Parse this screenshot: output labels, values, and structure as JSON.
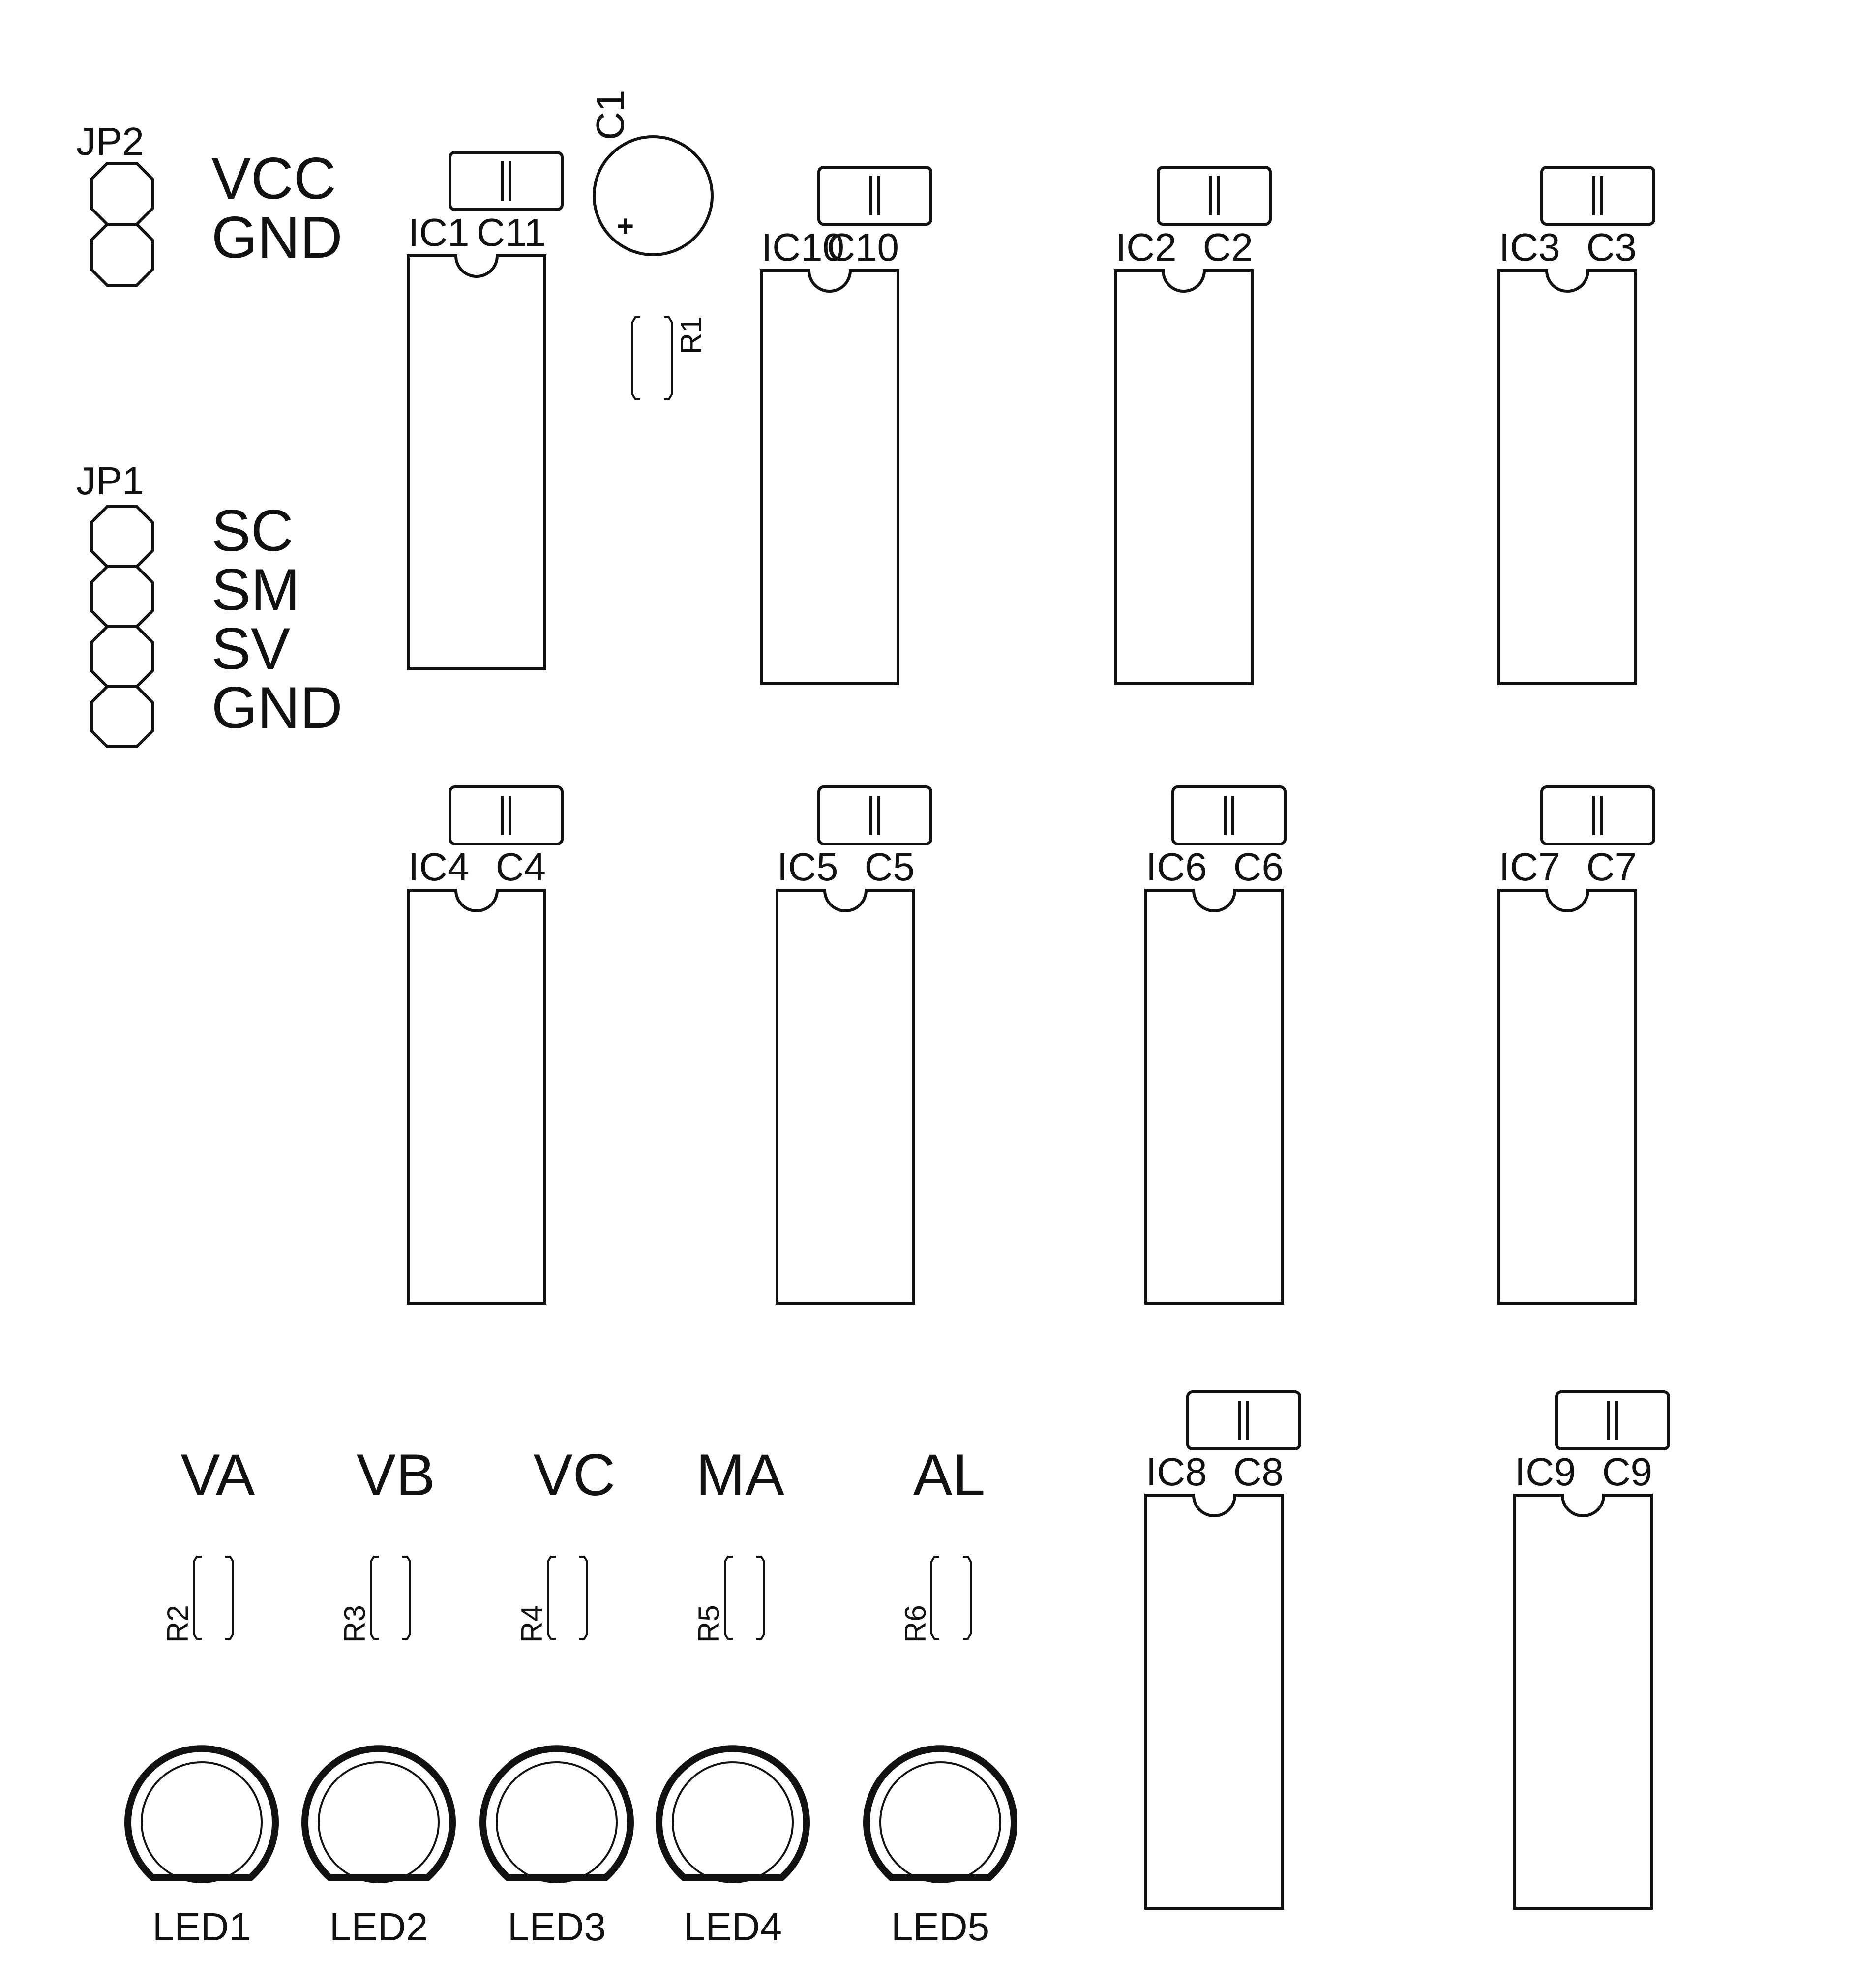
{
  "board": {
    "jp2": {
      "ref": "JP2",
      "pins": [
        "VCC",
        "GND"
      ]
    },
    "jp1": {
      "ref": "JP1",
      "pins": [
        "SC",
        "SM",
        "SV",
        "GND"
      ]
    },
    "c1": {
      "ref": "C1",
      "polarity": "+"
    },
    "r1": {
      "ref": "R1"
    },
    "ics": [
      {
        "ref": "IC1",
        "cap": "C11"
      },
      {
        "ref": "IC10",
        "cap": "C10"
      },
      {
        "ref": "IC2",
        "cap": "C2"
      },
      {
        "ref": "IC3",
        "cap": "C3"
      },
      {
        "ref": "IC4",
        "cap": "C4"
      },
      {
        "ref": "IC5",
        "cap": "C5"
      },
      {
        "ref": "IC6",
        "cap": "C6"
      },
      {
        "ref": "IC7",
        "cap": "C7"
      },
      {
        "ref": "IC8",
        "cap": "C8"
      },
      {
        "ref": "IC9",
        "cap": "C9"
      }
    ],
    "indicators": [
      {
        "signal": "VA",
        "resistor": "R2",
        "led": "LED1"
      },
      {
        "signal": "VB",
        "resistor": "R3",
        "led": "LED2"
      },
      {
        "signal": "VC",
        "resistor": "R4",
        "led": "LED3"
      },
      {
        "signal": "MA",
        "resistor": "R5",
        "led": "LED4"
      },
      {
        "signal": "AL",
        "resistor": "R6",
        "led": "LED5"
      }
    ]
  }
}
